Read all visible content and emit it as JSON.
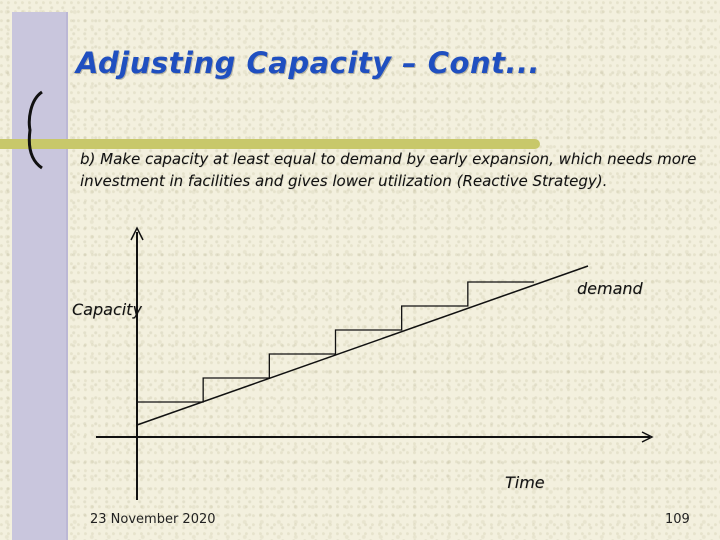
{
  "title": "Adjusting Capacity – Cont...",
  "body": "b) Make capacity at least equal to demand by early expansion, which needs more investment in facilities and gives lower utilization (Reactive Strategy).",
  "diagram": {
    "y_axis_label": "Capacity",
    "x_axis_label": "Time",
    "demand_label": "demand",
    "steps": 6
  },
  "footer": {
    "date": "23 November 2020",
    "page_number": "109"
  },
  "colors": {
    "title": "#1f4fc0",
    "left_strip": "#c9c6dd",
    "rule_bar": "#c8c86a",
    "background": "#f3f0de"
  }
}
